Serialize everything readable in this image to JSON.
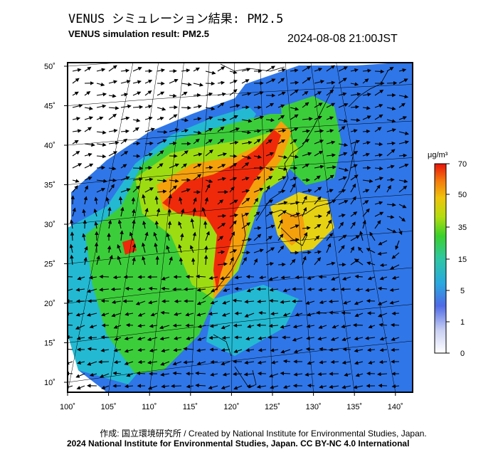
{
  "header": {
    "title_jp": "VENUS シミュレーション結果: PM2.5",
    "title_en": "VENUS simulation result: PM2.5",
    "timestamp": "2024-08-08 21:00JST"
  },
  "map": {
    "y_ticks": [
      "50˚",
      "45˚",
      "40˚",
      "35˚",
      "30˚",
      "25˚",
      "20˚",
      "15˚",
      "10˚"
    ],
    "x_ticks": [
      "100˚",
      "105˚",
      "110˚",
      "115˚",
      "120˚",
      "125˚",
      "130˚",
      "135˚",
      "140˚"
    ],
    "colors": {
      "none": "#ffffff",
      "very_low": "#d6dbf4",
      "low": "#5a70e0",
      "blue": "#2f76e8",
      "cyan": "#23b9d2",
      "green": "#3ccd3a",
      "lime": "#9edc12",
      "yellow": "#e6d212",
      "orange": "#f5a10c",
      "red": "#ef2a0b"
    }
  },
  "colorbar": {
    "unit": "μg/m³",
    "labels": [
      "70",
      "50",
      "35",
      "15",
      "5",
      "1",
      "0"
    ]
  },
  "footer": {
    "credit_jp": "作成: 国立環境研究所 / Created by National Institute for Environmental Studies, Japan.",
    "credit_en": "2024 National Institute for Environmental Studies, Japan. CC BY-NC 4.0 International"
  }
}
